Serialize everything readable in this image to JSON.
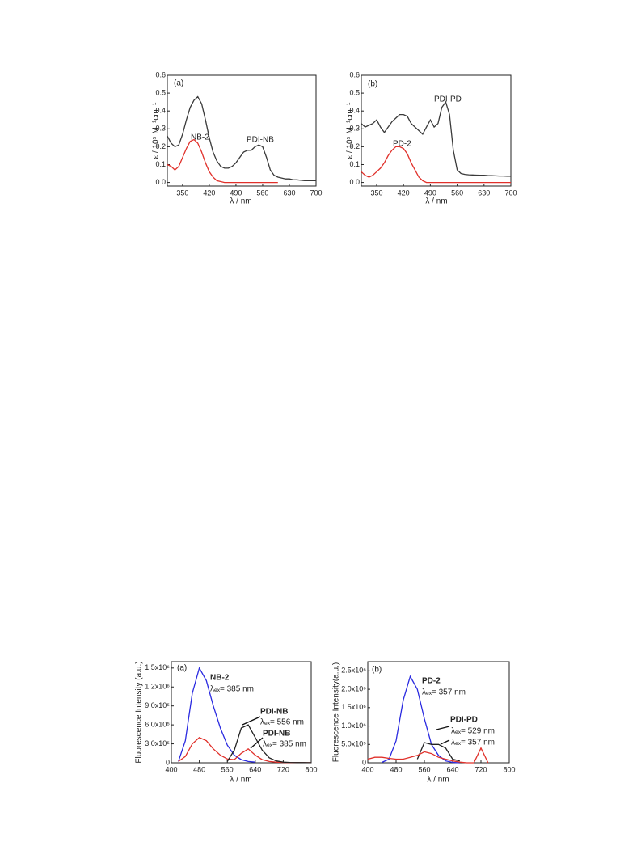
{
  "chart_data": [
    {
      "type": "line",
      "xlabel": "λ / nm",
      "ylabel": "ε / 10⁵ M⁻¹cm⁻¹",
      "xlim": [
        310,
        700
      ],
      "xticks": [
        350,
        420,
        490,
        560,
        630,
        700
      ],
      "ylim": [
        -0.02,
        0.6
      ],
      "yticks": [
        {
          "value": 0,
          "label": "0.0"
        },
        0.1,
        0.2,
        0.3,
        0.4,
        0.5,
        0.6
      ],
      "annotations": [
        "(a)",
        "NB-2",
        "PDI-NB"
      ],
      "x": [
        310,
        320,
        330,
        340,
        350,
        360,
        370,
        380,
        390,
        400,
        410,
        420,
        430,
        440,
        450,
        460,
        470,
        480,
        490,
        500,
        510,
        520,
        530,
        540,
        550,
        560,
        570,
        580,
        590,
        600,
        610,
        620,
        630,
        640,
        650,
        660,
        670,
        680,
        690,
        700
      ],
      "series": [
        {
          "name": "PDI-NB",
          "color": "#3a3a3a",
          "values": [
            0.26,
            0.22,
            0.2,
            0.21,
            0.27,
            0.35,
            0.42,
            0.46,
            0.48,
            0.44,
            0.35,
            0.25,
            0.17,
            0.12,
            0.09,
            0.08,
            0.08,
            0.09,
            0.11,
            0.14,
            0.17,
            0.18,
            0.18,
            0.2,
            0.21,
            0.2,
            0.14,
            0.07,
            0.04,
            0.03,
            0.025,
            0.02,
            0.02,
            0.015,
            0.015,
            0.012,
            0.01,
            0.01,
            0.01,
            0.01
          ]
        },
        {
          "name": "NB-2",
          "color": "#e0302a",
          "values": [
            0.1,
            0.09,
            0.07,
            0.09,
            0.14,
            0.19,
            0.23,
            0.24,
            0.22,
            0.17,
            0.11,
            0.06,
            0.03,
            0.01,
            0.005,
            0,
            0,
            0,
            0,
            0,
            0,
            0,
            0,
            0,
            0,
            0,
            0,
            0,
            0,
            0,
            null,
            null,
            null,
            null,
            null,
            null,
            null,
            null,
            null,
            null
          ]
        }
      ]
    },
    {
      "type": "line",
      "xlabel": "λ / nm",
      "ylabel": "ε / 10⁵ M⁻¹cm⁻¹",
      "xlim": [
        310,
        700
      ],
      "xticks": [
        350,
        420,
        490,
        560,
        630,
        700
      ],
      "ylim": [
        -0.02,
        0.6
      ],
      "yticks": [
        {
          "value": 0,
          "label": "0.0"
        },
        0.1,
        0.2,
        0.3,
        0.4,
        0.5,
        0.6
      ],
      "annotations": [
        "(b)",
        "PDI-PD",
        "PD-2"
      ],
      "x": [
        310,
        320,
        330,
        340,
        350,
        360,
        370,
        380,
        390,
        400,
        410,
        420,
        430,
        440,
        450,
        460,
        470,
        480,
        490,
        500,
        510,
        520,
        530,
        540,
        550,
        560,
        570,
        580,
        590,
        600,
        610,
        620,
        630,
        640,
        650,
        660,
        670,
        680,
        690,
        700
      ],
      "series": [
        {
          "name": "PDI-PD",
          "color": "#3a3a3a",
          "values": [
            0.33,
            0.31,
            0.32,
            0.33,
            0.35,
            0.31,
            0.28,
            0.31,
            0.34,
            0.36,
            0.38,
            0.38,
            0.37,
            0.33,
            0.31,
            0.29,
            0.27,
            0.31,
            0.35,
            0.31,
            0.33,
            0.42,
            0.45,
            0.38,
            0.18,
            0.07,
            0.05,
            0.045,
            0.043,
            0.042,
            0.041,
            0.04,
            0.04,
            0.039,
            0.038,
            0.037,
            0.036,
            0.036,
            0.035,
            0.035
          ]
        },
        {
          "name": "PD-2",
          "color": "#e0302a",
          "values": [
            0.06,
            0.04,
            0.03,
            0.04,
            0.06,
            0.08,
            0.11,
            0.15,
            0.18,
            0.2,
            0.2,
            0.19,
            0.16,
            0.11,
            0.07,
            0.03,
            0.01,
            0,
            0,
            0,
            0,
            0,
            0,
            0,
            0,
            0,
            0,
            0,
            0,
            0,
            0,
            0,
            0,
            0,
            0,
            0,
            0,
            0,
            0,
            0
          ]
        }
      ]
    },
    {
      "type": "line",
      "xlabel": "λ / nm",
      "ylabel": "Fluorescence Intensity (a.u.)",
      "xlim": [
        400,
        800
      ],
      "xticks": [
        400,
        480,
        560,
        640,
        720,
        800
      ],
      "ylim": [
        0,
        1600000
      ],
      "yticks": [
        0,
        {
          "value": 300000,
          "label": "3.0x10⁵"
        },
        {
          "value": 600000,
          "label": "6.0x10⁵"
        },
        {
          "value": 900000,
          "label": "9.0x10⁵"
        },
        {
          "value": 1200000,
          "label": "1.2x10⁶"
        },
        {
          "value": 1500000,
          "label": "1.5x10⁶"
        }
      ],
      "annotations": [
        "(a)",
        "NB-2",
        "λₑₓ= 385 nm",
        "PDI-NB",
        "λₑₓ= 556 nm",
        "PDI-NB",
        "λₑₓ= 385 nm"
      ],
      "x": [
        400,
        420,
        440,
        460,
        480,
        500,
        520,
        540,
        560,
        580,
        600,
        620,
        640,
        660,
        680,
        700,
        720,
        740,
        760,
        780,
        800
      ],
      "series": [
        {
          "name": "NB-2",
          "color": "#2a2ae0",
          "values": [
            null,
            20000,
            350000,
            1100000,
            1500000,
            1300000,
            900000,
            550000,
            280000,
            120000,
            50000,
            20000,
            10000,
            null,
            null,
            null,
            null,
            null,
            null,
            null,
            null
          ]
        },
        {
          "name": "PDI-NB (λex 385 nm)",
          "color": "#e0302a",
          "values": [
            null,
            20000,
            100000,
            300000,
            400000,
            350000,
            220000,
            120000,
            60000,
            50000,
            150000,
            220000,
            120000,
            50000,
            20000,
            10000,
            5000,
            3000,
            2000,
            1000,
            1000
          ]
        },
        {
          "name": "PDI-NB (λex 556 nm)",
          "color": "#222222",
          "values": [
            null,
            null,
            null,
            null,
            null,
            null,
            null,
            null,
            20000,
            200000,
            550000,
            600000,
            400000,
            200000,
            80000,
            30000,
            10000,
            5000,
            3000,
            2000,
            1000
          ]
        }
      ]
    },
    {
      "type": "line",
      "xlabel": "λ / nm",
      "ylabel": "Fluorescence Intensity(a.u.)",
      "xlim": [
        400,
        800
      ],
      "xticks": [
        400,
        480,
        560,
        640,
        720,
        800
      ],
      "ylim": [
        0,
        2750000
      ],
      "yticks": [
        0,
        {
          "value": 500000,
          "label": "5.0x10⁵"
        },
        {
          "value": 1000000,
          "label": "1.0x10⁶"
        },
        {
          "value": 1500000,
          "label": "1.5x10⁶"
        },
        {
          "value": 2000000,
          "label": "2.0x10⁶"
        },
        {
          "value": 2500000,
          "label": "2.5x10⁶"
        }
      ],
      "annotations": [
        "(b)",
        "PD-2",
        "λₑₓ= 357 nm",
        "PDI-PD",
        "λₑₓ= 529 nm",
        "λₑₓ= 357 nm"
      ],
      "x": [
        400,
        420,
        440,
        460,
        480,
        500,
        520,
        540,
        560,
        580,
        600,
        620,
        640,
        660,
        680,
        700,
        720,
        740
      ],
      "series": [
        {
          "name": "PD-2",
          "color": "#2a2ae0",
          "values": [
            null,
            null,
            10000,
            100000,
            600000,
            1700000,
            2350000,
            2000000,
            1200000,
            500000,
            200000,
            50000,
            10000,
            0,
            null,
            null,
            null,
            null
          ]
        },
        {
          "name": "PDI-PD (λex 529 nm)",
          "color": "#222222",
          "values": [
            null,
            null,
            null,
            null,
            null,
            null,
            null,
            100000,
            550000,
            500000,
            500000,
            400000,
            100000,
            50000,
            null,
            null,
            null,
            null
          ]
        },
        {
          "name": "PDI-PD (λex 357 nm)",
          "color": "#e0302a",
          "values": [
            100000,
            150000,
            150000,
            120000,
            100000,
            100000,
            150000,
            200000,
            300000,
            250000,
            150000,
            100000,
            50000,
            20000,
            0,
            0,
            400000,
            0
          ]
        }
      ]
    }
  ]
}
